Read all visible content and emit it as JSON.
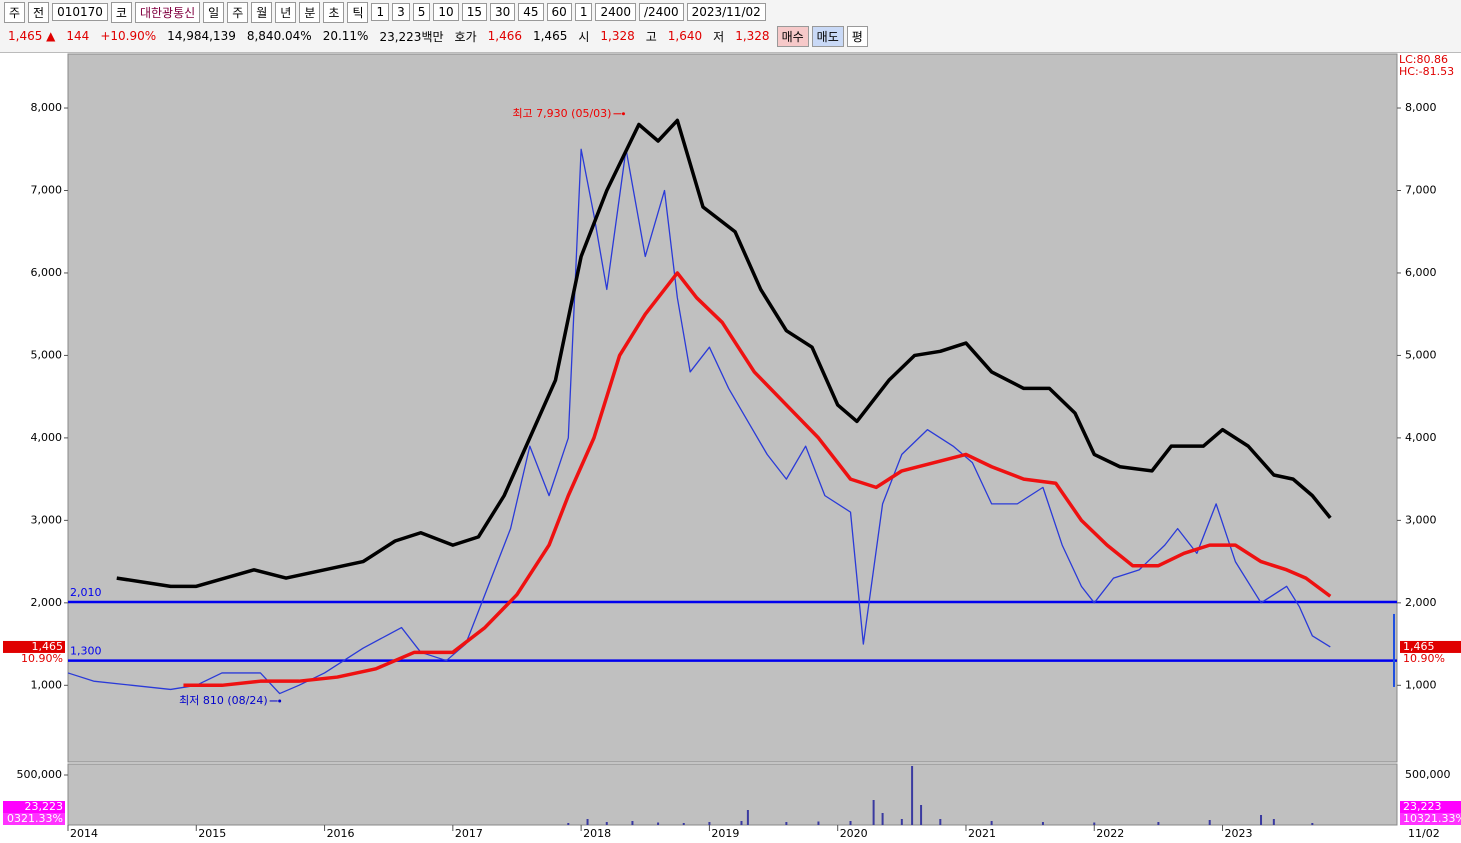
{
  "toolbar": {
    "items": [
      "주",
      "전",
      "010170",
      "코",
      "대한광통신",
      "일",
      "주",
      "월",
      "년",
      "분",
      "초",
      "틱",
      "1",
      "3",
      "5",
      "10",
      "15",
      "30",
      "45",
      "60",
      "1",
      "2400",
      "/2400",
      "2023/11/02"
    ]
  },
  "quote_bar": {
    "items": [
      "1,465 ▲",
      "144",
      "+10.90%",
      "14,984,139",
      "8,840.04%",
      "20.11%",
      "23,223백만",
      "호가",
      "1,466",
      "1,465",
      "시",
      "1,328",
      "고",
      "1,640",
      "저",
      "1,328"
    ],
    "buttons": [
      "매수",
      "매도",
      "평"
    ]
  },
  "chart_data": {
    "type": "line",
    "xlim": [
      2014,
      2024.36
    ],
    "xticks": [
      2014,
      2015,
      2016,
      2017,
      2018,
      2019,
      2020,
      2021,
      2022,
      2023
    ],
    "end_date_label": "11/02",
    "ylim": [
      70,
      8655
    ],
    "yticks": [
      {
        "value": 1000,
        "label": "1,000"
      },
      {
        "value": 2000,
        "label": "2,000"
      },
      {
        "value": 3000,
        "label": "3,000"
      },
      {
        "value": 4000,
        "label": "4,000"
      },
      {
        "value": 5000,
        "label": "5,000"
      },
      {
        "value": 6000,
        "label": "6,000"
      },
      {
        "value": 7000,
        "label": "7,000"
      },
      {
        "value": 8000,
        "label": "8,000"
      }
    ],
    "indicator_labels": [
      "LC:80.86",
      "HC:-81.53"
    ],
    "series": [
      {
        "color": "#000000",
        "width": 3.5,
        "x": [
          2014.38,
          2014.8,
          2015.0,
          2015.45,
          2015.7,
          2016.0,
          2016.3,
          2016.55,
          2016.75,
          2017.0,
          2017.2,
          2017.4,
          2017.6,
          2017.8,
          2018.0,
          2018.2,
          2018.45,
          2018.6,
          2018.75,
          2018.95,
          2019.2,
          2019.4,
          2019.6,
          2019.8,
          2020.0,
          2020.15,
          2020.4,
          2020.6,
          2020.8,
          2021.0,
          2021.2,
          2021.45,
          2021.65,
          2021.85,
          2022.0,
          2022.2,
          2022.45,
          2022.6,
          2022.85,
          2023.0,
          2023.2,
          2023.4,
          2023.55,
          2023.7,
          2023.84
        ],
        "values": [
          2300,
          2200,
          2200,
          2400,
          2300,
          2400,
          2500,
          2750,
          2850,
          2700,
          2800,
          3300,
          4000,
          4700,
          6200,
          7000,
          7800,
          7600,
          7850,
          6800,
          6500,
          5800,
          5300,
          5100,
          4400,
          4200,
          4700,
          5000,
          5050,
          5150,
          4800,
          4600,
          4600,
          4300,
          3800,
          3650,
          3600,
          3900,
          3900,
          4100,
          3900,
          3550,
          3500,
          3300,
          3030
        ]
      },
      {
        "color": "#ee1111",
        "width": 3.5,
        "x": [
          2014.9,
          2015.2,
          2015.5,
          2015.8,
          2016.1,
          2016.4,
          2016.7,
          2017.0,
          2017.25,
          2017.5,
          2017.75,
          2017.9,
          2018.1,
          2018.3,
          2018.5,
          2018.75,
          2018.9,
          2019.1,
          2019.35,
          2019.6,
          2019.85,
          2020.1,
          2020.3,
          2020.5,
          2020.75,
          2021.0,
          2021.2,
          2021.45,
          2021.7,
          2021.9,
          2022.1,
          2022.3,
          2022.5,
          2022.7,
          2022.9,
          2023.1,
          2023.3,
          2023.5,
          2023.65,
          2023.84
        ],
        "values": [
          1000,
          1000,
          1050,
          1050,
          1100,
          1200,
          1400,
          1400,
          1700,
          2100,
          2700,
          3300,
          4000,
          5000,
          5500,
          6000,
          5700,
          5400,
          4800,
          4400,
          4000,
          3500,
          3400,
          3600,
          3700,
          3800,
          3650,
          3500,
          3450,
          3000,
          2700,
          2450,
          2450,
          2600,
          2700,
          2700,
          2500,
          2400,
          2300,
          2080
        ]
      },
      {
        "color": "#2a3ad8",
        "width": 1.3,
        "x": [
          2014.0,
          2014.2,
          2014.5,
          2014.8,
          2015.0,
          2015.2,
          2015.5,
          2015.65,
          2015.8,
          2016.0,
          2016.3,
          2016.6,
          2016.75,
          2016.95,
          2017.1,
          2017.25,
          2017.45,
          2017.6,
          2017.75,
          2017.9,
          2018.0,
          2018.1,
          2018.2,
          2018.35,
          2018.5,
          2018.65,
          2018.75,
          2018.85,
          2019.0,
          2019.15,
          2019.3,
          2019.45,
          2019.6,
          2019.75,
          2019.9,
          2020.1,
          2020.2,
          2020.35,
          2020.5,
          2020.7,
          2020.9,
          2021.05,
          2021.2,
          2021.4,
          2021.6,
          2021.75,
          2021.9,
          2022.0,
          2022.15,
          2022.35,
          2022.55,
          2022.65,
          2022.8,
          2022.95,
          2023.1,
          2023.3,
          2023.5,
          2023.6,
          2023.7,
          2023.84
        ],
        "values": [
          1150,
          1050,
          1000,
          950,
          1000,
          1150,
          1150,
          900,
          1000,
          1150,
          1450,
          1700,
          1400,
          1300,
          1500,
          2100,
          2900,
          3900,
          3300,
          4000,
          7500,
          6700,
          5800,
          7500,
          6200,
          7000,
          5700,
          4800,
          5100,
          4600,
          4200,
          3800,
          3500,
          3900,
          3300,
          3100,
          1500,
          3200,
          3800,
          4100,
          3900,
          3700,
          3200,
          3200,
          3400,
          2700,
          2200,
          2000,
          2300,
          2400,
          2700,
          2900,
          2600,
          3200,
          2500,
          2000,
          2200,
          1950,
          1600,
          1465
        ]
      }
    ],
    "hlines": [
      {
        "value": 2010,
        "label": "2,010",
        "color": "#0000ee"
      },
      {
        "value": 1300,
        "label": "1,300",
        "color": "#0000ee"
      }
    ],
    "annotations": [
      {
        "text": "최고 7,930 (05/03)",
        "x": 2018.33,
        "value": 7930,
        "color": "#ee0000"
      },
      {
        "text": "최저 810 (08/24)",
        "x": 2015.65,
        "value": 810,
        "color": "#0000cc"
      }
    ],
    "last_price": {
      "value": 1465,
      "label": "1,465",
      "change": "10.90%"
    },
    "volume": {
      "color": "#3a3aa0",
      "ylim": [
        0,
        610000
      ],
      "yticks": [
        {
          "value": 500000,
          "label": "500,000"
        }
      ],
      "x": [
        2017.9,
        2018.05,
        2018.2,
        2018.4,
        2018.6,
        2018.8,
        2019.0,
        2019.25,
        2019.3,
        2019.6,
        2019.85,
        2020.1,
        2020.28,
        2020.35,
        2020.5,
        2020.58,
        2020.65,
        2020.8,
        2021.2,
        2021.6,
        2022.0,
        2022.5,
        2022.9,
        2023.3,
        2023.4,
        2023.7
      ],
      "values": [
        20000,
        60000,
        30000,
        40000,
        25000,
        20000,
        30000,
        40000,
        150000,
        30000,
        35000,
        40000,
        250000,
        120000,
        60000,
        590000,
        200000,
        60000,
        40000,
        30000,
        25000,
        30000,
        50000,
        100000,
        60000,
        20000
      ],
      "last": {
        "value": 23223,
        "label": "23,223"
      },
      "ratio_left": "0321.33%",
      "ratio_right": "10321.33%"
    }
  }
}
